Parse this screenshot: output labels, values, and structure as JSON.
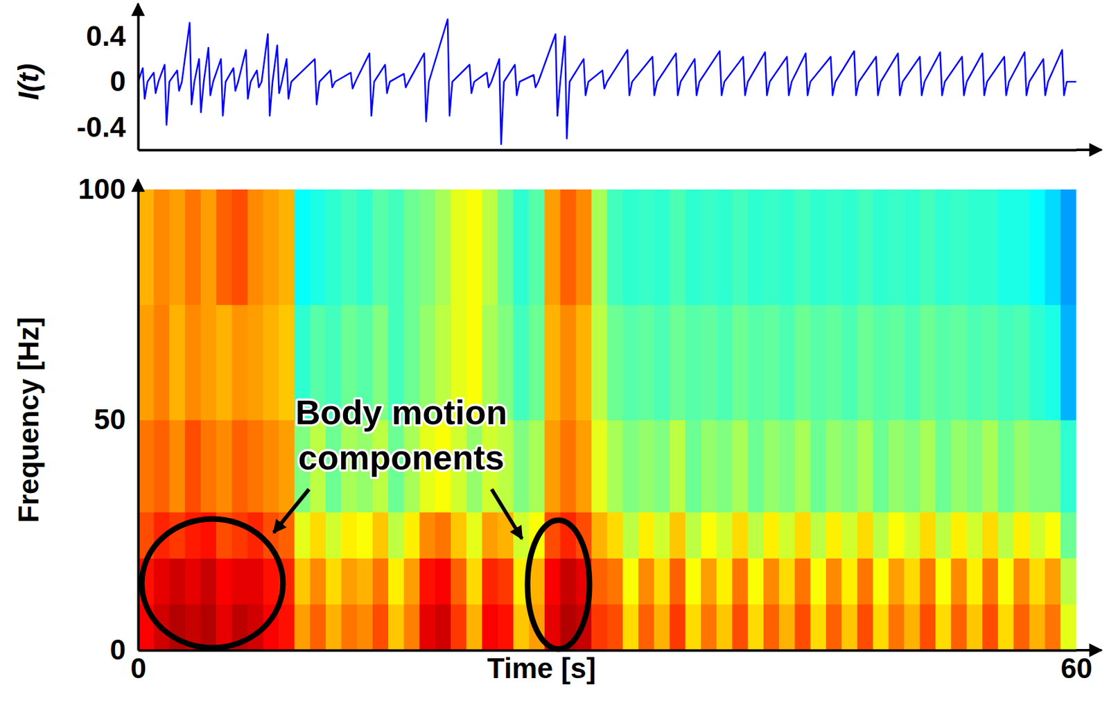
{
  "chart_data": [
    {
      "type": "line",
      "ylabel": "I(t)",
      "xlim": [
        0,
        60
      ],
      "ylim": [
        -0.6,
        0.6
      ],
      "yticks": [
        -0.4,
        0,
        0.4
      ],
      "tick_labels": "y",
      "color": "#0000ff",
      "x": [
        0,
        0.3,
        0.42,
        0.6,
        1,
        1.12,
        1.3,
        1.7,
        1.82,
        2,
        2.5,
        2.62,
        2.8,
        3.3,
        3.42,
        3.6,
        3.9,
        4.02,
        4.2,
        4.5,
        4.62,
        4.8,
        5.3,
        5.42,
        5.6,
        6.1,
        6.22,
        6.4,
        6.9,
        7.02,
        7.2,
        7.6,
        7.72,
        7.9,
        8.3,
        8.42,
        8.6,
        8.9,
        9.02,
        9.2,
        9.5,
        9.62,
        9.8,
        11.3,
        11.42,
        11.6,
        12.3,
        12.42,
        12.6,
        13.6,
        13.72,
        13.9,
        14.8,
        14.92,
        15.1,
        15.8,
        15.92,
        16.1,
        17,
        17.12,
        17.3,
        18.3,
        18.42,
        18.6,
        19.8,
        19.92,
        20.1,
        21.2,
        21.32,
        21.5,
        22.3,
        22.42,
        22.6,
        23.1,
        23.22,
        23.4,
        24.1,
        24.22,
        24.4,
        25.3,
        25.42,
        25.6,
        26.7,
        26.82,
        27,
        27.3,
        27.42,
        27.6,
        28.5,
        28.62,
        28.8,
        29.7,
        29.82,
        30,
        31.3,
        31.42,
        31.6,
        32.9,
        33.02,
        33.2,
        34.4,
        34.52,
        34.7,
        35.6,
        35.72,
        35.9,
        37.2,
        37.32,
        37.5,
        38.7,
        38.82,
        39,
        40.1,
        40.22,
        40.4,
        41.5,
        41.62,
        41.8,
        42.7,
        42.82,
        43,
        44.3,
        44.42,
        44.6,
        45.8,
        45.92,
        46.1,
        47.2,
        47.32,
        47.5,
        48.6,
        48.72,
        48.9,
        50,
        50.12,
        50.3,
        51.3,
        51.42,
        51.6,
        52.7,
        52.82,
        53,
        54,
        54.12,
        54.3,
        55.4,
        55.52,
        55.7,
        56.7,
        56.82,
        57,
        57.9,
        58.02,
        58.2,
        59.1,
        59.22,
        59.4,
        60
      ],
      "values": [
        0,
        0.12,
        -0.15,
        0,
        0.08,
        -0.1,
        0,
        0.15,
        -0.38,
        0,
        0.1,
        -0.08,
        0,
        0.52,
        -0.2,
        0,
        0.2,
        -0.27,
        0,
        0.3,
        -0.12,
        0,
        0.2,
        -0.3,
        0,
        0.12,
        -0.08,
        0,
        0.28,
        -0.15,
        0,
        0.1,
        -0.05,
        0,
        0.42,
        -0.3,
        0,
        0.32,
        -0.1,
        0,
        0.2,
        -0.15,
        0,
        0.2,
        -0.2,
        0,
        0.1,
        -0.05,
        0,
        0.08,
        -0.06,
        0,
        0.25,
        -0.3,
        0,
        0.15,
        -0.1,
        0,
        0.07,
        -0.05,
        0,
        0.25,
        -0.35,
        0,
        0.55,
        -0.3,
        0,
        0.15,
        -0.1,
        0,
        0.08,
        -0.05,
        0,
        0.2,
        -0.55,
        0,
        0.15,
        -0.12,
        0,
        0.06,
        -0.05,
        0,
        0.42,
        -0.3,
        0,
        0.4,
        -0.5,
        0,
        0.2,
        -0.12,
        0,
        0.1,
        -0.06,
        0,
        0.28,
        -0.12,
        0,
        0.22,
        -0.12,
        0,
        0.25,
        -0.12,
        0,
        0.2,
        -0.12,
        0,
        0.27,
        -0.12,
        0,
        0.22,
        -0.12,
        0,
        0.26,
        -0.12,
        0,
        0.22,
        -0.12,
        0,
        0.25,
        -0.12,
        0,
        0.22,
        -0.12,
        0,
        0.27,
        -0.12,
        0,
        0.22,
        -0.12,
        0,
        0.25,
        -0.12,
        0,
        0.22,
        -0.12,
        0,
        0.26,
        -0.12,
        0,
        0.22,
        -0.12,
        0,
        0.25,
        -0.12,
        0,
        0.22,
        -0.12,
        0,
        0.26,
        -0.12,
        0,
        0.2,
        -0.12,
        0,
        0.28,
        -0.12,
        0,
        0
      ]
    },
    {
      "type": "heatmap",
      "xlabel": "Time [s]",
      "ylabel": "Frequency [Hz]",
      "xlim": [
        0,
        60
      ],
      "ylim": [
        0,
        100
      ],
      "xticks": [
        0,
        60
      ],
      "yticks": [
        0,
        50,
        100
      ],
      "x_bins": [
        0,
        1,
        2,
        3,
        4,
        5,
        6,
        7,
        8,
        9,
        10,
        11,
        12,
        13,
        14,
        15,
        16,
        17,
        18,
        19,
        20,
        21,
        22,
        23,
        24,
        25,
        26,
        27,
        28,
        29,
        30,
        31,
        32,
        33,
        34,
        35,
        36,
        37,
        38,
        39,
        40,
        41,
        42,
        43,
        44,
        45,
        46,
        47,
        48,
        49,
        50,
        51,
        52,
        53,
        54,
        55,
        56,
        57,
        58,
        59,
        60
      ],
      "y_bins": [
        0,
        10,
        20,
        30,
        50,
        75,
        100
      ],
      "color_range": [
        0,
        1
      ],
      "cells": [
        [
          0.88,
          0.92,
          0.95,
          0.93,
          0.95,
          0.9,
          0.94,
          0.92,
          0.88,
          0.86,
          0.72,
          0.78,
          0.7,
          0.76,
          0.74,
          0.8,
          0.68,
          0.75,
          0.9,
          0.92,
          0.82,
          0.7,
          0.88,
          0.86,
          0.68,
          0.72,
          0.9,
          0.95,
          0.93,
          0.82,
          0.8,
          0.66,
          0.78,
          0.7,
          0.82,
          0.66,
          0.76,
          0.68,
          0.8,
          0.66,
          0.78,
          0.7,
          0.8,
          0.66,
          0.78,
          0.68,
          0.8,
          0.66,
          0.76,
          0.7,
          0.8,
          0.66,
          0.78,
          0.68,
          0.8,
          0.66,
          0.78,
          0.7,
          0.76,
          0.6
        ],
        [
          0.86,
          0.9,
          0.92,
          0.9,
          0.93,
          0.88,
          0.9,
          0.9,
          0.86,
          0.84,
          0.68,
          0.74,
          0.66,
          0.72,
          0.7,
          0.76,
          0.64,
          0.72,
          0.86,
          0.88,
          0.78,
          0.66,
          0.84,
          0.82,
          0.64,
          0.7,
          0.88,
          0.93,
          0.9,
          0.78,
          0.76,
          0.62,
          0.74,
          0.66,
          0.78,
          0.62,
          0.72,
          0.64,
          0.76,
          0.62,
          0.74,
          0.66,
          0.76,
          0.62,
          0.74,
          0.64,
          0.76,
          0.62,
          0.72,
          0.66,
          0.76,
          0.62,
          0.74,
          0.64,
          0.76,
          0.62,
          0.74,
          0.66,
          0.72,
          0.56
        ],
        [
          0.8,
          0.84,
          0.82,
          0.85,
          0.86,
          0.8,
          0.82,
          0.84,
          0.8,
          0.78,
          0.6,
          0.66,
          0.58,
          0.64,
          0.62,
          0.68,
          0.56,
          0.64,
          0.74,
          0.76,
          0.68,
          0.6,
          0.72,
          0.7,
          0.58,
          0.62,
          0.8,
          0.84,
          0.8,
          0.7,
          0.66,
          0.56,
          0.64,
          0.58,
          0.68,
          0.56,
          0.62,
          0.58,
          0.66,
          0.56,
          0.64,
          0.58,
          0.66,
          0.56,
          0.64,
          0.58,
          0.66,
          0.56,
          0.62,
          0.58,
          0.66,
          0.56,
          0.64,
          0.58,
          0.66,
          0.56,
          0.64,
          0.58,
          0.62,
          0.48
        ],
        [
          0.76,
          0.78,
          0.74,
          0.8,
          0.76,
          0.74,
          0.78,
          0.76,
          0.74,
          0.72,
          0.5,
          0.56,
          0.48,
          0.54,
          0.52,
          0.56,
          0.48,
          0.54,
          0.6,
          0.62,
          0.58,
          0.52,
          0.58,
          0.56,
          0.5,
          0.54,
          0.72,
          0.76,
          0.72,
          0.6,
          0.54,
          0.5,
          0.52,
          0.5,
          0.56,
          0.48,
          0.52,
          0.5,
          0.54,
          0.48,
          0.52,
          0.5,
          0.54,
          0.48,
          0.52,
          0.5,
          0.54,
          0.48,
          0.52,
          0.5,
          0.54,
          0.48,
          0.52,
          0.5,
          0.54,
          0.48,
          0.52,
          0.5,
          0.5,
          0.42
        ],
        [
          0.72,
          0.75,
          0.7,
          0.74,
          0.72,
          0.7,
          0.73,
          0.72,
          0.7,
          0.68,
          0.42,
          0.46,
          0.44,
          0.48,
          0.46,
          0.5,
          0.44,
          0.48,
          0.52,
          0.56,
          0.6,
          0.62,
          0.54,
          0.5,
          0.44,
          0.48,
          0.7,
          0.74,
          0.7,
          0.56,
          0.48,
          0.46,
          0.47,
          0.45,
          0.48,
          0.46,
          0.47,
          0.45,
          0.48,
          0.46,
          0.47,
          0.45,
          0.48,
          0.46,
          0.47,
          0.45,
          0.48,
          0.46,
          0.47,
          0.45,
          0.48,
          0.46,
          0.47,
          0.45,
          0.46,
          0.44,
          0.45,
          0.42,
          0.4,
          0.3
        ],
        [
          0.7,
          0.74,
          0.72,
          0.76,
          0.72,
          0.78,
          0.8,
          0.74,
          0.72,
          0.7,
          0.38,
          0.4,
          0.42,
          0.44,
          0.42,
          0.46,
          0.44,
          0.48,
          0.5,
          0.54,
          0.6,
          0.62,
          0.56,
          0.48,
          0.42,
          0.46,
          0.72,
          0.78,
          0.74,
          0.54,
          0.44,
          0.42,
          0.43,
          0.42,
          0.45,
          0.42,
          0.43,
          0.42,
          0.44,
          0.42,
          0.43,
          0.42,
          0.44,
          0.42,
          0.43,
          0.42,
          0.44,
          0.42,
          0.43,
          0.42,
          0.44,
          0.42,
          0.43,
          0.42,
          0.42,
          0.4,
          0.4,
          0.38,
          0.34,
          0.28
        ]
      ],
      "annotations": [
        {
          "text": "Body motion components"
        }
      ]
    }
  ]
}
